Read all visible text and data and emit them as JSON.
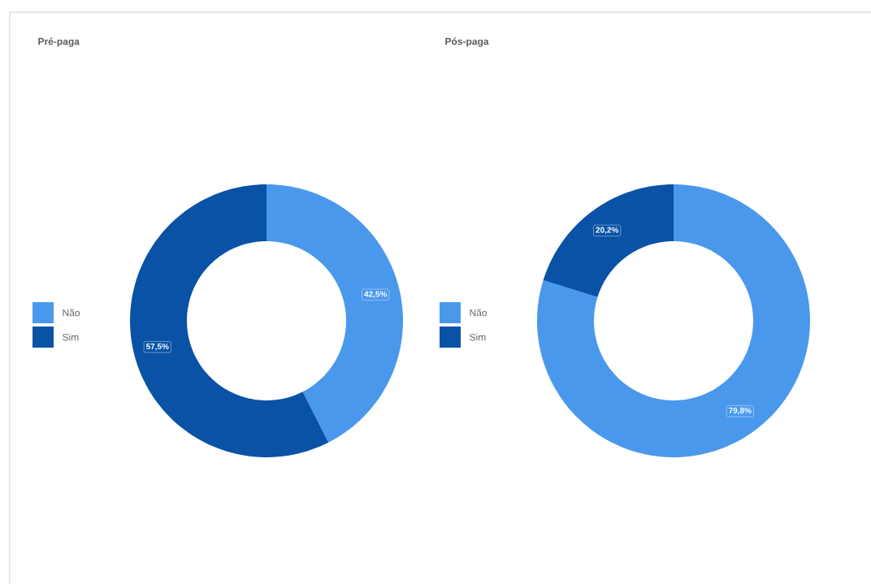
{
  "chart_data": [
    {
      "type": "donut",
      "title": "Pré-paga",
      "categories": [
        "Não",
        "Sim"
      ],
      "values": [
        42.5,
        57.5
      ],
      "colors": [
        "#4a98ec",
        "#0a52a5"
      ],
      "value_labels": [
        "42,5%",
        "57,5%"
      ],
      "legend": "left"
    },
    {
      "type": "donut",
      "title": "Pós-paga",
      "categories": [
        "Não",
        "Sim"
      ],
      "values": [
        79.8,
        20.2
      ],
      "colors": [
        "#4a98ec",
        "#0a52a5"
      ],
      "value_labels": [
        "79,8%",
        "20,2%"
      ],
      "legend": "left"
    }
  ]
}
